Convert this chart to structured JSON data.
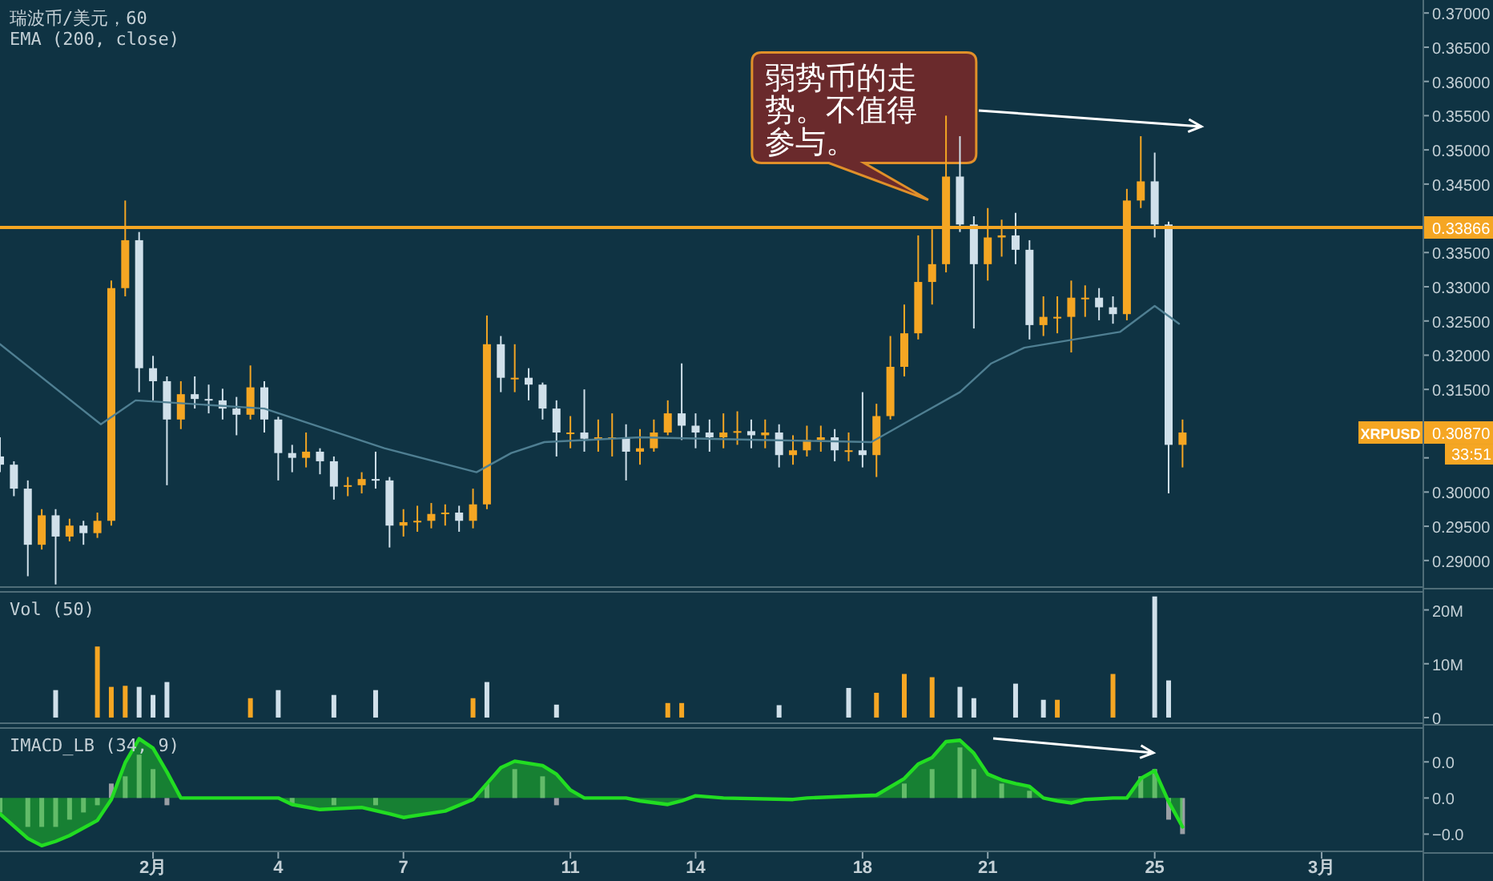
{
  "chart_data": [
    {
      "type": "candlestick",
      "title": "瑞波币/美元，60",
      "subtitle": "EMA (200, close)",
      "colors": [
        "#d0e0ea",
        "#d0e0ea",
        "#d0e0ea",
        "#f5a623",
        "#d0e0ea",
        "#f5a623",
        "#d0e0ea",
        "#f5a623",
        "#f5a623",
        "#f5a623",
        "#d0e0ea",
        "#d0e0ea",
        "#d0e0ea",
        "#f5a623",
        "#d0e0ea",
        "#d0e0ea",
        "#d0e0ea",
        "#d0e0ea",
        "#f5a623",
        "#d0e0ea",
        "#d0e0ea",
        "#d0e0ea",
        "#f5a623",
        "#d0e0ea",
        "#d0e0ea",
        "#f5a623",
        "#f5a623",
        "#d0e0ea",
        "#d0e0ea",
        "#f5a623",
        "#f5a623",
        "#f5a623",
        "#f5a623",
        "#d0e0ea",
        "#f5a623",
        "#f5a623",
        "#d0e0ea",
        "#f5a623",
        "#d0e0ea",
        "#d0e0ea",
        "#d0e0ea",
        "#f5a623",
        "#d0e0ea",
        "#f5a623",
        "#f5a623",
        "#d0e0ea",
        "#f5a623",
        "#f5a623",
        "#f5a623",
        "#d0e0ea",
        "#d0e0ea",
        "#d0e0ea",
        "#f5a623",
        "#f5a623",
        "#d0e0ea",
        "#f5a623",
        "#d0e0ea",
        "#f5a623",
        "#f5a623",
        "#f5a623",
        "#d0e0ea",
        "#f5a623",
        "#d0e0ea",
        "#f5a623",
        "#f5a623",
        "#f5a623",
        "#f5a623",
        "#f5a623",
        "#f5a623",
        "#d0e0ea",
        "#d0e0ea",
        "#f5a623",
        "#f5a623",
        "#d0e0ea",
        "#d0e0ea",
        "#f5a623",
        "#f5a623",
        "#f5a623",
        "#f5a623",
        "#d0e0ea",
        "#d0e0ea",
        "#f5a623",
        "#f5a623",
        "#d0e0ea",
        "#d0e0ea",
        "#f5a623"
      ],
      "x": [
        "--01-28T08:00",
        "--01-28T16:00",
        "--01-29T00:00",
        "--01-29T08:00",
        "--01-29T16:00",
        "--01-30T00:00",
        "--01-30T08:00",
        "--01-30T16:00",
        "--01-31T00:00",
        "--01-31T08:00",
        "--01-31T16:00",
        "--02-01T00:00",
        "--02-01T08:00",
        "--02-01T16:00",
        "--02-02T00:00",
        "--02-02T08:00",
        "--02-02T16:00",
        "--02-03T00:00",
        "--02-03T08:00",
        "--02-03T16:00",
        "--02-04T00:00",
        "--02-04T08:00",
        "--02-04T16:00",
        "--02-05T00:00",
        "--02-05T08:00",
        "--02-05T16:00",
        "--02-06T00:00",
        "--02-06T08:00",
        "--02-06T16:00",
        "--02-07T00:00",
        "--02-07T08:00",
        "--02-07T16:00",
        "--02-08T00:00",
        "--02-08T08:00",
        "--02-08T16:00",
        "--02-09T00:00",
        "--02-09T08:00",
        "--02-09T16:00",
        "--02-10T00:00",
        "--02-10T08:00",
        "--02-10T16:00",
        "--02-11T00:00",
        "--02-11T08:00",
        "--02-11T16:00",
        "--02-12T00:00",
        "--02-12T08:00",
        "--02-12T16:00",
        "--02-13T00:00",
        "--02-13T08:00",
        "--02-13T16:00",
        "--02-14T00:00",
        "--02-14T08:00",
        "--02-14T16:00",
        "--02-15T00:00",
        "--02-15T08:00",
        "--02-15T16:00",
        "--02-16T00:00",
        "--02-16T08:00",
        "--02-16T16:00",
        "--02-17T00:00",
        "--02-17T08:00",
        "--02-17T16:00",
        "--02-18T00:00",
        "--02-18T08:00",
        "--02-18T16:00",
        "--02-19T00:00",
        "--02-19T08:00",
        "--02-19T16:00",
        "--02-20T00:00",
        "--02-20T08:00",
        "--02-20T16:00",
        "--02-21T00:00",
        "--02-21T08:00",
        "--02-21T16:00",
        "--02-22T00:00",
        "--02-22T08:00",
        "--02-22T16:00",
        "--02-23T00:00",
        "--02-23T08:00",
        "--02-23T16:00",
        "--02-24T00:00",
        "--02-24T08:00",
        "--02-24T16:00",
        "--02-25T00:00",
        "--02-25T08:00",
        "--02-25T16:00"
      ],
      "ohlc": [
        [
          0.3052,
          0.308,
          0.3029,
          0.304
        ],
        [
          0.304,
          0.3045,
          0.2994,
          0.3005
        ],
        [
          0.3005,
          0.3017,
          0.2877,
          0.2923
        ],
        [
          0.2923,
          0.2975,
          0.2916,
          0.2966
        ],
        [
          0.2966,
          0.2975,
          0.2865,
          0.2935
        ],
        [
          0.2935,
          0.2961,
          0.2928,
          0.2951
        ],
        [
          0.2951,
          0.2958,
          0.2923,
          0.294
        ],
        [
          0.294,
          0.297,
          0.2933,
          0.2958
        ],
        [
          0.2958,
          0.3309,
          0.2951,
          0.3298
        ],
        [
          0.3298,
          0.3426,
          0.3286,
          0.3368
        ],
        [
          0.3368,
          0.338,
          0.3146,
          0.3181
        ],
        [
          0.3181,
          0.3199,
          0.3134,
          0.3162
        ],
        [
          0.3162,
          0.3169,
          0.301,
          0.3106
        ],
        [
          0.3106,
          0.3162,
          0.3092,
          0.3143
        ],
        [
          0.3143,
          0.3169,
          0.3122,
          0.3136
        ],
        [
          0.3136,
          0.3157,
          0.3115,
          0.3134
        ],
        [
          0.3134,
          0.3151,
          0.3106,
          0.3122
        ],
        [
          0.3122,
          0.3139,
          0.3083,
          0.3113
        ],
        [
          0.3113,
          0.3185,
          0.3106,
          0.3153
        ],
        [
          0.3153,
          0.3162,
          0.3087,
          0.3106
        ],
        [
          0.3106,
          0.311,
          0.3017,
          0.3057
        ],
        [
          0.3057,
          0.3069,
          0.3029,
          0.305
        ],
        [
          0.305,
          0.3087,
          0.3036,
          0.3059
        ],
        [
          0.3059,
          0.3064,
          0.3026,
          0.3045
        ],
        [
          0.3045,
          0.3052,
          0.2989,
          0.3008
        ],
        [
          0.3008,
          0.3022,
          0.2994,
          0.301
        ],
        [
          0.301,
          0.3029,
          0.2998,
          0.3019
        ],
        [
          0.3019,
          0.3059,
          0.3005,
          0.3017
        ],
        [
          0.3017,
          0.3022,
          0.2919,
          0.2951
        ],
        [
          0.2951,
          0.2975,
          0.2935,
          0.2956
        ],
        [
          0.2956,
          0.298,
          0.2942,
          0.2958
        ],
        [
          0.2958,
          0.2984,
          0.2947,
          0.2968
        ],
        [
          0.2968,
          0.2982,
          0.2951,
          0.297
        ],
        [
          0.297,
          0.298,
          0.2942,
          0.2958
        ],
        [
          0.2958,
          0.3005,
          0.2947,
          0.2982
        ],
        [
          0.2982,
          0.3258,
          0.2975,
          0.3216
        ],
        [
          0.3216,
          0.3228,
          0.3146,
          0.3167
        ],
        [
          0.3167,
          0.3216,
          0.3146,
          0.3167
        ],
        [
          0.3167,
          0.3181,
          0.3134,
          0.3157
        ],
        [
          0.3157,
          0.316,
          0.3106,
          0.3122
        ],
        [
          0.3122,
          0.3134,
          0.3052,
          0.3087
        ],
        [
          0.3087,
          0.3111,
          0.3064,
          0.3087
        ],
        [
          0.3087,
          0.315,
          0.3059,
          0.3078
        ],
        [
          0.3078,
          0.3106,
          0.3059,
          0.308
        ],
        [
          0.308,
          0.3115,
          0.3052,
          0.308
        ],
        [
          0.308,
          0.3099,
          0.3017,
          0.3059
        ],
        [
          0.3059,
          0.3092,
          0.304,
          0.3064
        ],
        [
          0.3064,
          0.3106,
          0.3059,
          0.3087
        ],
        [
          0.3087,
          0.3134,
          0.3083,
          0.3115
        ],
        [
          0.3115,
          0.3188,
          0.3076,
          0.3097
        ],
        [
          0.3097,
          0.3115,
          0.3064,
          0.3087
        ],
        [
          0.3087,
          0.3106,
          0.3059,
          0.308
        ],
        [
          0.308,
          0.3115,
          0.3064,
          0.3087
        ],
        [
          0.3087,
          0.3118,
          0.3069,
          0.3089
        ],
        [
          0.3089,
          0.3106,
          0.3064,
          0.3083
        ],
        [
          0.3083,
          0.3106,
          0.3064,
          0.3087
        ],
        [
          0.3087,
          0.3099,
          0.3036,
          0.3054
        ],
        [
          0.3054,
          0.3083,
          0.304,
          0.3061
        ],
        [
          0.3061,
          0.3097,
          0.3052,
          0.3076
        ],
        [
          0.3076,
          0.3097,
          0.3059,
          0.308
        ],
        [
          0.308,
          0.3092,
          0.3045,
          0.3061
        ],
        [
          0.3061,
          0.3087,
          0.3045,
          0.3061
        ],
        [
          0.3061,
          0.3146,
          0.3036,
          0.3054
        ],
        [
          0.3054,
          0.3129,
          0.3022,
          0.3111
        ],
        [
          0.3111,
          0.3228,
          0.3106,
          0.3183
        ],
        [
          0.3183,
          0.3274,
          0.3169,
          0.3232
        ],
        [
          0.3232,
          0.3375,
          0.3223,
          0.3307
        ],
        [
          0.3307,
          0.3384,
          0.3274,
          0.3333
        ],
        [
          0.3333,
          0.355,
          0.3321,
          0.3461
        ],
        [
          0.3461,
          0.352,
          0.338,
          0.3391
        ],
        [
          0.3391,
          0.3403,
          0.3239,
          0.3333
        ],
        [
          0.3333,
          0.3415,
          0.3309,
          0.3372
        ],
        [
          0.3372,
          0.3398,
          0.3344,
          0.3375
        ],
        [
          0.3375,
          0.3408,
          0.3333,
          0.3354
        ],
        [
          0.3354,
          0.3368,
          0.3223,
          0.3244
        ],
        [
          0.3244,
          0.3286,
          0.3228,
          0.3256
        ],
        [
          0.3256,
          0.3286,
          0.3232,
          0.3256
        ],
        [
          0.3256,
          0.3309,
          0.3204,
          0.3284
        ],
        [
          0.3284,
          0.3302,
          0.3256,
          0.3284
        ],
        [
          0.3284,
          0.3298,
          0.3251,
          0.327
        ],
        [
          0.327,
          0.3286,
          0.3246,
          0.326
        ],
        [
          0.326,
          0.3443,
          0.3251,
          0.3426
        ],
        [
          0.3426,
          0.352,
          0.3415,
          0.3454
        ],
        [
          0.3454,
          0.3496,
          0.3372,
          0.3391
        ],
        [
          0.3391,
          0.3395,
          0.2998,
          0.3069
        ],
        [
          0.3069,
          0.3106,
          0.3036,
          0.3087
        ]
      ],
      "series": [
        {
          "type": "line",
          "color": "#4f7f92",
          "x": [
            "--01-28T08:00",
            "--01-30T18:00",
            "--01-31T14:00",
            "--02-03T16:00",
            "--02-06T13:00",
            "--02-08T18:00",
            "--02-09T14:00",
            "--02-10T09:00",
            "--02-12T16:00",
            "--02-15T18:00",
            "--02-18T05:00",
            "--02-19T04:00",
            "--02-20T08:00",
            "--02-21T02:00",
            "--02-21T21:00",
            "--02-24T04:00",
            "--02-25T00:00",
            "--02-25T14:00"
          ],
          "values": [
            0.3216,
            0.3099,
            0.3134,
            0.3122,
            0.3064,
            0.3029,
            0.3057,
            0.3073,
            0.308,
            0.3076,
            0.3073,
            0.3106,
            0.3146,
            0.3188,
            0.3211,
            0.3234,
            0.3272,
            0.3246
          ]
        }
      ],
      "xlim": [
        "--01-28T08:00",
        "--03-03T10:00"
      ],
      "ylim": [
        0.286,
        0.3719
      ],
      "yticks": [
        {
          "value": 0.29,
          "label": "0.29000"
        },
        {
          "value": 0.295,
          "label": "0.29500"
        },
        {
          "value": 0.3,
          "label": "0.30000"
        },
        {
          "value": 0.305,
          "label": null
        },
        {
          "value": 0.31,
          "label": null
        },
        {
          "value": 0.315,
          "label": "0.31500"
        },
        {
          "value": 0.32,
          "label": "0.32000"
        },
        {
          "value": 0.325,
          "label": "0.32500"
        },
        {
          "value": 0.33,
          "label": "0.33000"
        },
        {
          "value": 0.335,
          "label": "0.33500"
        },
        {
          "value": 0.34,
          "label": null
        },
        {
          "value": 0.345,
          "label": "0.34500"
        },
        {
          "value": 0.35,
          "label": "0.35000"
        },
        {
          "value": 0.355,
          "label": "0.35500"
        },
        {
          "value": 0.36,
          "label": "0.36000"
        },
        {
          "value": 0.365,
          "label": "0.36500"
        },
        {
          "value": 0.37,
          "label": "0.37000"
        }
      ],
      "tick_labels": "y",
      "ref_lines": [
        {
          "axis": "y",
          "value": 0.33866,
          "label": "0.33866",
          "color": "#f5a623"
        }
      ],
      "annotations": [
        "弱势币的走势。不值得参与。",
        "XRPUSD",
        "0.30870",
        "33:51"
      ]
    },
    {
      "type": "bar",
      "title": "Vol (50)",
      "series": [
        {
          "color": "#f5a623",
          "x": [
            "--01-30T16:00",
            "--01-31T00:00",
            "--01-31T08:00",
            "--02-03T08:00",
            "--02-08T16:00",
            "--02-13T08:00",
            "--02-13T16:00",
            "--02-18T08:00",
            "--02-19T00:00",
            "--02-19T16:00",
            "--02-22T16:00",
            "--02-24T00:00"
          ],
          "values": [
            13200000,
            5700000,
            5900000,
            3600000,
            3600000,
            2700000,
            2700000,
            4600000,
            8100000,
            7500000,
            3300000,
            8100000
          ]
        },
        {
          "color": "#d0e0ea",
          "x": [
            "--01-29T16:00",
            "--01-31T16:00",
            "--02-01T00:00",
            "--02-01T08:00",
            "--02-04T00:00",
            "--02-05T08:00",
            "--02-06T08:00",
            "--02-09T00:00",
            "--02-10T16:00",
            "--02-16T00:00",
            "--02-17T16:00",
            "--02-20T08:00",
            "--02-20T16:00",
            "--02-21T16:00",
            "--02-22T08:00",
            "--02-25T00:00",
            "--02-25T08:00"
          ],
          "values": [
            5100000,
            5700000,
            4200000,
            6600000,
            5100000,
            4200000,
            5100000,
            6600000,
            2400000,
            2300000,
            5500000,
            5700000,
            3600000,
            6300000,
            3300000,
            22500000,
            6900000
          ]
        }
      ],
      "xlim": [
        "--01-28T08:00",
        "--03-03T10:00"
      ],
      "ylim": [
        -1200000,
        23500000
      ],
      "yticks": [
        0,
        {
          "value": 10000000,
          "label": "10M"
        },
        {
          "value": 20000000,
          "label": "20M"
        }
      ],
      "tick_labels": "y"
    },
    {
      "type": "area",
      "title": "IMACD_LB (34, 9)",
      "series": [
        {
          "type": "bar",
          "color": "#9a9fa5",
          "x": [
            "--01-28T08:00",
            "--01-29T00:00",
            "--01-29T08:00",
            "--01-29T16:00",
            "--01-30T00:00",
            "--01-30T08:00",
            "--01-30T16:00",
            "--01-31T00:00",
            "--01-31T08:00",
            "--01-31T16:00",
            "--02-01T00:00",
            "--02-01T08:00",
            "--02-04T08:00",
            "--02-05T08:00",
            "--02-06T08:00",
            "--02-09T00:00",
            "--02-09T16:00",
            "--02-10T08:00",
            "--02-10T16:00",
            "--02-19T00:00",
            "--02-19T16:00",
            "--02-20T08:00",
            "--02-20T16:00",
            "--02-21T08:00",
            "--02-22T00:00",
            "--02-24T16:00",
            "--02-25T00:00",
            "--02-25T08:00",
            "--02-25T16:00"
          ],
          "values": [
            -0.002,
            -0.004,
            -0.004,
            -0.004,
            -0.003,
            -0.002,
            -0.001,
            0.002,
            0.003,
            0.006,
            0.004,
            -0.001,
            -0.001,
            -0.001,
            -0.001,
            0.002,
            0.004,
            0.003,
            -0.001,
            0.002,
            0.004,
            0.007,
            0.004,
            0.002,
            0.001,
            0.003,
            0.004,
            -0.003,
            -0.005
          ]
        },
        {
          "color": "#22dd22",
          "x": [
            "--01-28T08:00",
            "--01-29T00:00",
            "--01-29T08:00",
            "--01-29T16:00",
            "--01-30T00:00",
            "--01-30T16:00",
            "--01-31T00:00",
            "--01-31T08:00",
            "--01-31T16:00",
            "--02-01T00:00",
            "--02-01T08:00",
            "--02-01T16:00",
            "--02-04T00:00",
            "--02-04T08:00",
            "--02-05T00:00",
            "--02-06T00:00",
            "--02-06T16:00",
            "--02-07T00:00",
            "--02-08T00:00",
            "--02-08T16:00",
            "--02-09T00:00",
            "--02-09T08:00",
            "--02-09T16:00",
            "--02-10T08:00",
            "--02-10T16:00",
            "--02-11T00:00",
            "--02-11T08:00",
            "--02-12T08:00",
            "--02-12T16:00",
            "--02-13T08:00",
            "--02-13T16:00",
            "--02-14T00:00",
            "--02-14T16:00",
            "--02-16T08:00",
            "--02-16T16:00",
            "--02-18T08:00",
            "--02-19T00:00",
            "--02-19T08:00",
            "--02-19T16:00",
            "--02-20T00:00",
            "--02-20T08:00",
            "--02-20T16:00",
            "--02-21T00:00",
            "--02-21T08:00",
            "--02-21T16:00",
            "--02-22T00:00",
            "--02-22T08:00",
            "--02-22T16:00",
            "--02-23T00:00",
            "--02-23T08:00",
            "--02-24T00:00",
            "--02-24T08:00",
            "--02-24T16:00",
            "--02-25T00:00",
            "--02-25T08:00",
            "--02-25T16:00"
          ],
          "values": [
            -0.0022,
            -0.0056,
            -0.0066,
            -0.006,
            -0.0052,
            -0.0031,
            -0.0002,
            0.0049,
            0.0082,
            0.0069,
            0.0036,
            0,
            0,
            -0.0009,
            -0.0016,
            -0.0013,
            -0.0022,
            -0.0027,
            -0.0018,
            -0.0002,
            0.002,
            0.0042,
            0.0051,
            0.0045,
            0.0033,
            0.0011,
            0,
            0,
            -0.0004,
            -0.0009,
            -0.0004,
            0.0003,
            0,
            -0.0002,
            0,
            0.0004,
            0.0027,
            0.0047,
            0.0056,
            0.0078,
            0.008,
            0.0062,
            0.0033,
            0.0025,
            0.002,
            0.0016,
            0,
            -0.0004,
            -0.0007,
            -0.0002,
            0,
            0,
            0.0027,
            0.0038,
            -0.0005,
            -0.004
          ]
        }
      ],
      "xlim": [
        "--01-28T08:00",
        "--03-03T10:00"
      ],
      "ylim": [
        -0.0075,
        0.0098
      ],
      "xticks": [
        {
          "value": "--02-01",
          "label": "2月"
        },
        {
          "value": "--02-04",
          "label": "4"
        },
        {
          "value": "--02-07",
          "label": "7"
        },
        {
          "value": "--02-11",
          "label": "11"
        },
        {
          "value": "--02-14",
          "label": "14"
        },
        {
          "value": "--02-18",
          "label": "18"
        },
        {
          "value": "--02-21",
          "label": "21"
        },
        {
          "value": "--02-25",
          "label": "25"
        },
        {
          "value": "--03-01",
          "label": "3月"
        }
      ],
      "yticks": [
        {
          "value": 0.005,
          "label": "0.0"
        },
        {
          "value": 0,
          "label": "0.0"
        },
        {
          "value": -0.005,
          "label": "−0.0"
        }
      ]
    }
  ]
}
